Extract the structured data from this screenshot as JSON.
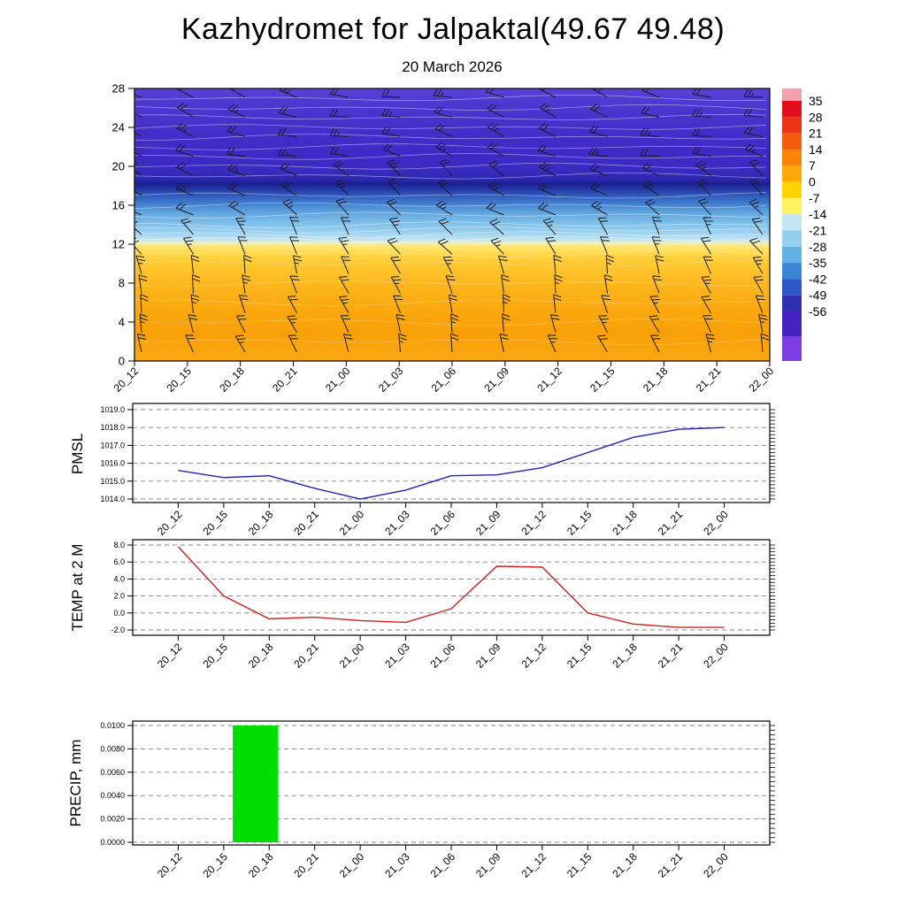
{
  "header": {
    "title": "Kazhydromet for Jalpaktal(49.67 49.48)",
    "subtitle": "20 March 2026"
  },
  "time_labels": [
    "20_12",
    "20_15",
    "20_18",
    "20_21",
    "21_00",
    "21_03",
    "21_06",
    "21_09",
    "21_12",
    "21_15",
    "21_18",
    "21_21",
    "22_00"
  ],
  "chart_data": [
    {
      "id": "cross_section",
      "type": "heatmap",
      "description": "Vertical temperature cross-section (deg C) with wind barbs, height 0-28 vs time",
      "y_ticks": [
        0,
        4,
        8,
        12,
        16,
        20,
        24,
        28
      ],
      "contour_color": "#ffffff",
      "barb_color": "#1c1c1c",
      "contour_heights": [
        2,
        4,
        6,
        8,
        10,
        11,
        12.5,
        13,
        13.5,
        14,
        15,
        16,
        17,
        19,
        20,
        21,
        22,
        23,
        24,
        25,
        26,
        27
      ],
      "gradient_stops": [
        {
          "pos": 0.0,
          "color": "#5743d6"
        },
        {
          "pos": 0.06,
          "color": "#4c38d0"
        },
        {
          "pos": 0.14,
          "color": "#4530ca"
        },
        {
          "pos": 0.24,
          "color": "#4029c6"
        },
        {
          "pos": 0.3,
          "color": "#3a2bc0"
        },
        {
          "pos": 0.335,
          "color": "#2b28ac"
        },
        {
          "pos": 0.35,
          "color": "#1c1e92"
        },
        {
          "pos": 0.365,
          "color": "#21329f"
        },
        {
          "pos": 0.39,
          "color": "#2f55b9"
        },
        {
          "pos": 0.42,
          "color": "#3f7ccd"
        },
        {
          "pos": 0.455,
          "color": "#5fa5dd"
        },
        {
          "pos": 0.49,
          "color": "#7cbde8"
        },
        {
          "pos": 0.525,
          "color": "#97cfee"
        },
        {
          "pos": 0.553,
          "color": "#bfe3f3"
        },
        {
          "pos": 0.567,
          "color": "#eef0c4"
        },
        {
          "pos": 0.578,
          "color": "#ffe878"
        },
        {
          "pos": 0.6,
          "color": "#ffdb52"
        },
        {
          "pos": 0.635,
          "color": "#ffcb34"
        },
        {
          "pos": 0.68,
          "color": "#fec027"
        },
        {
          "pos": 0.74,
          "color": "#fcb31a"
        },
        {
          "pos": 0.82,
          "color": "#faa70d"
        },
        {
          "pos": 0.9,
          "color": "#f9a008"
        },
        {
          "pos": 1.0,
          "color": "#fba812"
        }
      ],
      "colorbar": {
        "tick_labels": [
          "35",
          "28",
          "21",
          "14",
          "7",
          "0",
          "-7",
          "-14",
          "-21",
          "-28",
          "-35",
          "-42",
          "-49",
          "-56"
        ],
        "segment_colors": [
          "#f2a2ac",
          "#e20d1b",
          "#ea3413",
          "#f35c0e",
          "#fa8409",
          "#ffa806",
          "#ffd400",
          "#fff25e",
          "#c4e5f4",
          "#94cfec",
          "#63b0e2",
          "#3a86d4",
          "#2b58c4",
          "#2f2fb2",
          "#4423c0",
          "#7e3ce4"
        ]
      }
    },
    {
      "id": "pmsl",
      "type": "line",
      "label": "PMSL",
      "color": "#2222bb",
      "y_ticks": [
        1019,
        1018,
        1017,
        1016,
        1015,
        1014
      ],
      "y_tick_labels": [
        "1019.0",
        "1018.0",
        "1017.0",
        "1016.0",
        "1015.0",
        "1014.0"
      ],
      "values": [
        1015.6,
        1015.2,
        1015.3,
        1014.6,
        1014.0,
        1014.5,
        1015.3,
        1015.35,
        1015.75,
        1016.6,
        1017.45,
        1017.9,
        1018.0
      ]
    },
    {
      "id": "temp2m",
      "type": "line",
      "label": "TEMP at 2 M",
      "color": "#cc2020",
      "y_ticks": [
        8,
        6,
        4,
        2,
        0,
        -2
      ],
      "y_tick_labels": [
        "8.0",
        "6.0",
        "4.0",
        "2.0",
        "0.0",
        "-2.0"
      ],
      "values": [
        7.8,
        2.0,
        -0.7,
        -0.5,
        -0.9,
        -1.1,
        0.5,
        5.5,
        5.4,
        0.0,
        -1.3,
        -1.7,
        -1.7
      ]
    },
    {
      "id": "precip",
      "type": "bar",
      "label": "PRECIP, mm",
      "color": "#00dd00",
      "y_ticks": [
        0.01,
        0.008,
        0.006,
        0.004,
        0.002,
        0
      ],
      "y_tick_labels": [
        "0.0100",
        "0.0080",
        "0.0060",
        "0.0040",
        "0.0020",
        "0.0000"
      ],
      "bars": [
        {
          "from_index": 1.2,
          "to_index": 2.2,
          "value": 0.01
        }
      ]
    }
  ]
}
